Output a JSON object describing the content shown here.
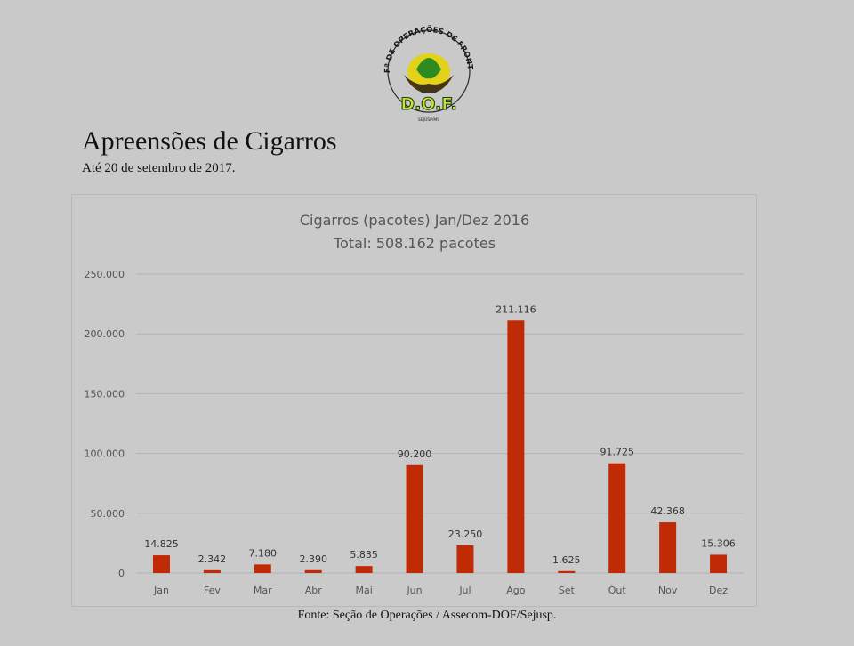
{
  "logo": {
    "arc_text": "BEPFª DE OPERAÇÕES DE FRONTEIRA",
    "acronym": "D.O.F.",
    "small_text": "SEJUSP/MS"
  },
  "header": {
    "title": "Apreensões de Cigarros",
    "subtitle": "Até 20 de setembro de 2017."
  },
  "footer": {
    "source": "Fonte: Seção de Operações / Assecom-DOF/Sejusp."
  },
  "colors": {
    "bar": "#c02a05",
    "text": "#555555",
    "grid": "#b3b3b3",
    "title_text": "#565656"
  },
  "chart_data": {
    "type": "bar",
    "title": "Cigarros (pacotes) Jan/Dez 2016",
    "subtitle": "Total: 508.162 pacotes",
    "categories": [
      "Jan",
      "Fev",
      "Mar",
      "Abr",
      "Mai",
      "Jun",
      "Jul",
      "Ago",
      "Set",
      "Out",
      "Nov",
      "Dez"
    ],
    "values": [
      14825,
      2342,
      7180,
      2390,
      5835,
      90200,
      23250,
      211116,
      1625,
      91725,
      42368,
      15306
    ],
    "value_labels": [
      "14.825",
      "2.342",
      "7.180",
      "2.390",
      "5.835",
      "90.200",
      "23.250",
      "211.116",
      "1.625",
      "91.725",
      "42.368",
      "15.306"
    ],
    "y_ticks": [
      0,
      50000,
      100000,
      150000,
      200000,
      250000
    ],
    "y_tick_labels": [
      "0",
      "50.000",
      "100.000",
      "150.000",
      "200.000",
      "250.000"
    ],
    "ylim": [
      0,
      250000
    ],
    "xlabel": "",
    "ylabel": "",
    "grid": true,
    "legend": "none"
  }
}
